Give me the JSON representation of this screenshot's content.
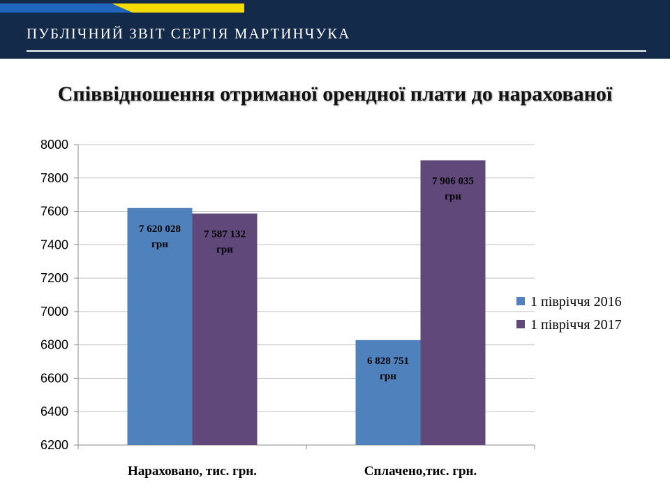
{
  "header": {
    "title": "ПУБЛІЧНИЙ ЗВІТ СЕРГІЯ МАРТИНЧУКА"
  },
  "colors": {
    "header_bg": "#142a4a",
    "flag_blue": "#1f64bd",
    "flag_yellow": "#f5dc00",
    "series_2016": "#4f81bd",
    "series_2017": "#60497a",
    "grid": "#bfbfbf"
  },
  "chart_data": {
    "type": "bar",
    "title": "Співвідношення отриманої орендної плати до нарахованої",
    "xlabel": "",
    "ylabel": "",
    "categories": [
      "Нараховано, тис. грн.",
      "Сплачено,тис. грн."
    ],
    "series": [
      {
        "name": "1 півріччя 2016",
        "values": [
          7620.028,
          6828.751
        ],
        "labels": [
          [
            "7 620 028",
            "грн"
          ],
          [
            "6 828 751",
            "грн"
          ]
        ]
      },
      {
        "name": "1 півріччя 2017",
        "values": [
          7587.132,
          7906.035
        ],
        "labels": [
          [
            "7 587 132",
            "грн"
          ],
          [
            "7 906 035",
            "грн"
          ]
        ]
      }
    ],
    "ylim": [
      6200,
      8000
    ],
    "yticks": [
      6200,
      6400,
      6600,
      6800,
      7000,
      7200,
      7400,
      7600,
      7800,
      8000
    ],
    "grid": true,
    "legend": "right"
  }
}
